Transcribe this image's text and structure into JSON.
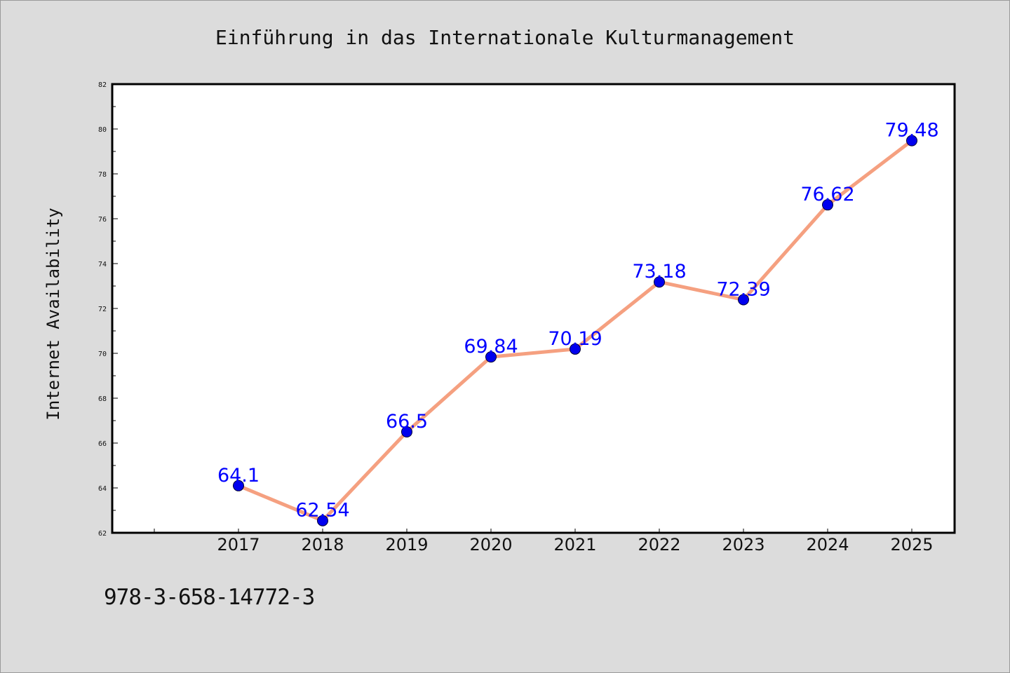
{
  "chart_data": {
    "type": "line",
    "title": "Einführung in das Internationale Kulturmanagement",
    "xlabel": "",
    "ylabel": "Internet Availability",
    "categories": [
      "2017",
      "2018",
      "2019",
      "2020",
      "2021",
      "2022",
      "2023",
      "2024",
      "2025"
    ],
    "series": [
      {
        "values": [
          64.1,
          62.54,
          66.5,
          69.84,
          70.19,
          73.18,
          72.39,
          76.62,
          79.48
        ],
        "labels": [
          "64.1",
          "62.54",
          "66.5",
          "69.84",
          "70.19",
          "73.18",
          "72.39",
          "76.62",
          "79.48"
        ],
        "line_color": "#f5a080",
        "marker_color": "#0000ee",
        "label_color": "#0000ff"
      }
    ],
    "ylim": [
      62,
      82
    ],
    "yticks": [
      "62",
      "64",
      "66",
      "68",
      "70",
      "72",
      "74",
      "76",
      "78",
      "80",
      "82"
    ],
    "grid": false,
    "legend": "none"
  },
  "footer": {
    "isbn": "978-3-658-14772-3"
  }
}
